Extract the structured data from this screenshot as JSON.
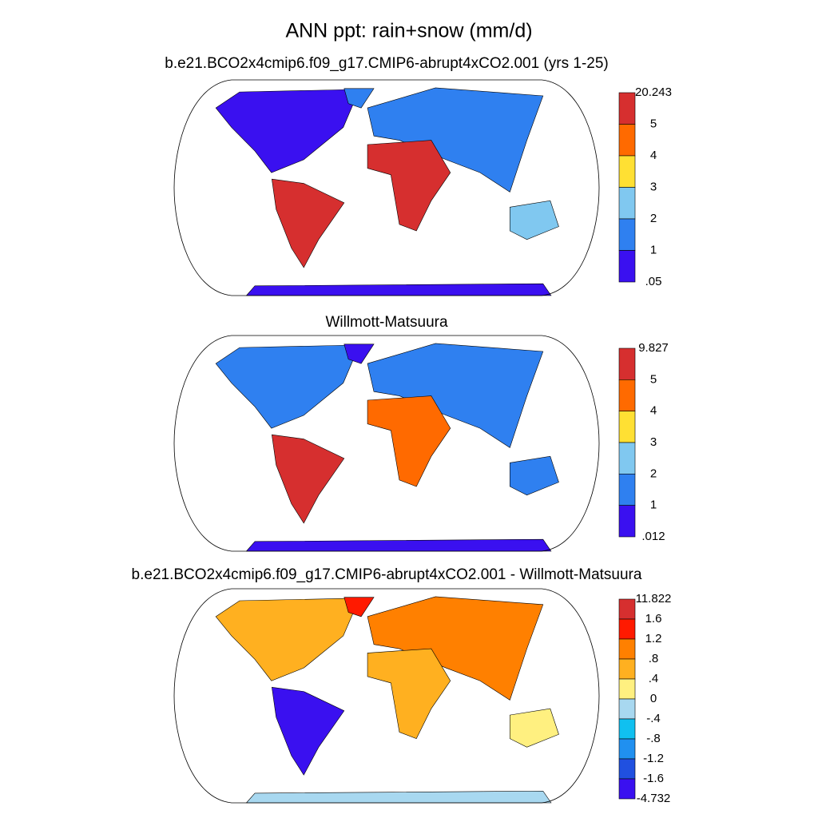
{
  "header": {
    "title": "ANN ppt: rain+snow (mm/d)"
  },
  "panels": [
    {
      "title": "b.e21.BCO2x4cmip6.f09_g17.CMIP6-abrupt4xCO2.001 (yrs 1-25)",
      "colorbar": {
        "labels": [
          "20.243",
          "5",
          "4",
          "3",
          "2",
          "1",
          ".05"
        ],
        "colors": [
          "#d62f2f",
          "#ff6a00",
          "#ffe033",
          "#80c8f0",
          "#2f80f0",
          "#3a10f0"
        ]
      }
    },
    {
      "title": "Willmott-Matsuura",
      "colorbar": {
        "labels": [
          "9.827",
          "5",
          "4",
          "3",
          "2",
          "1",
          ".012"
        ],
        "colors": [
          "#d62f2f",
          "#ff6a00",
          "#ffe033",
          "#80c8f0",
          "#2f80f0",
          "#3a10f0"
        ]
      }
    },
    {
      "title": "b.e21.BCO2x4cmip6.f09_g17.CMIP6-abrupt4xCO2.001 - Willmott-Matsuura",
      "colorbar": {
        "labels": [
          "11.822",
          "1.6",
          "1.2",
          ".8",
          ".4",
          "0",
          "-.4",
          "-.8",
          "-1.2",
          "-1.6",
          "-4.732"
        ],
        "colors": [
          "#d62f2f",
          "#ff1a00",
          "#ff8000",
          "#ffb020",
          "#fff080",
          "#a8d8f0",
          "#10c0f0",
          "#2090f0",
          "#2050e0",
          "#3a10f0"
        ]
      }
    }
  ]
}
